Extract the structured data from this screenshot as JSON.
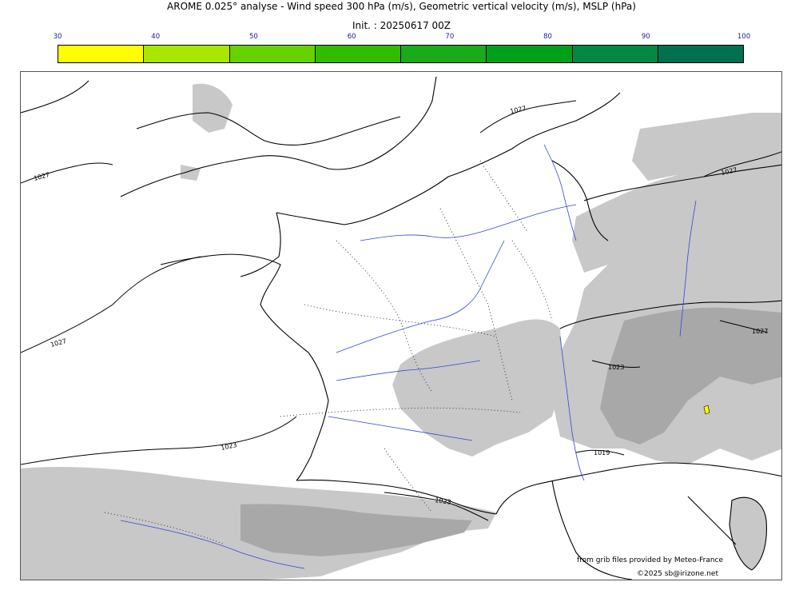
{
  "title": "AROME 0.025° analyse - Wind speed 300 hPa (m/s), Geometric vertical velocity (m/s), MSLP (hPa)",
  "init": "Init. : 20250617 00Z",
  "colorbar": {
    "ticks": [
      "30",
      "40",
      "50",
      "60",
      "70",
      "80",
      "90",
      "100"
    ],
    "colors": [
      "#ffff00",
      "#a8e600",
      "#66d200",
      "#33bb00",
      "#1aaa1a",
      "#00a01a",
      "#008844",
      "#007050"
    ]
  },
  "isobars": {
    "labels": [
      "1027",
      "1027",
      "1027",
      "1027",
      "1023",
      "1023",
      "1027",
      "1023",
      "1019"
    ]
  },
  "credits": {
    "source": "from grib files provided by Meteo-France",
    "copyright": "©2025 sb@irizone.net"
  },
  "colors": {
    "coast": "#000000",
    "rivers": "#3344dd",
    "relief": "#c8c8c8",
    "highlight": "#ffff00"
  }
}
